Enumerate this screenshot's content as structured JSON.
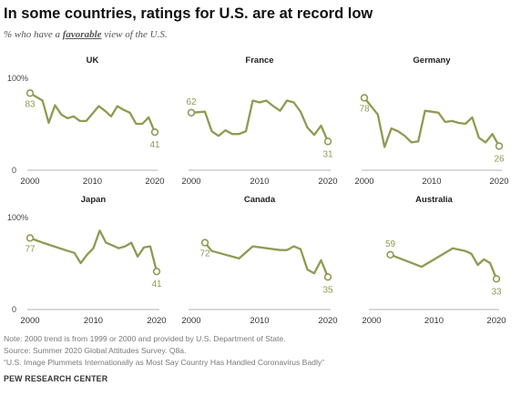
{
  "title": "In some countries, ratings for U.S. are at record low",
  "subtitle_pre": "% who have a ",
  "subtitle_em": "favorable",
  "subtitle_post": " view of the U.S.",
  "colors": {
    "line": "#8f9a52",
    "axis": "#9a9a9a",
    "text": "#333333"
  },
  "chart_data": [
    {
      "type": "line",
      "title": "UK",
      "xlim": [
        2000,
        2020
      ],
      "ylim": [
        0,
        100
      ],
      "y_tick_labels": [
        "100%",
        "0"
      ],
      "x_tick_labels": [
        "2000",
        "2010",
        "2020"
      ],
      "start_label": "83",
      "end_label": "41",
      "x": [
        2000,
        2002,
        2003,
        2004,
        2005,
        2006,
        2007,
        2008,
        2009,
        2011,
        2012,
        2013,
        2014,
        2015,
        2016,
        2017,
        2018,
        2019,
        2020
      ],
      "values": [
        83,
        75,
        51,
        70,
        60,
        56,
        58,
        53,
        53,
        69,
        64,
        58,
        69,
        65,
        62,
        50,
        50,
        57,
        41
      ]
    },
    {
      "type": "line",
      "title": "France",
      "xlim": [
        2000,
        2020
      ],
      "ylim": [
        0,
        100
      ],
      "x_tick_labels": [
        "2000",
        "2010",
        "2020"
      ],
      "start_label": "62",
      "end_label": "31",
      "x": [
        2000,
        2002,
        2003,
        2004,
        2005,
        2006,
        2007,
        2008,
        2009,
        2010,
        2011,
        2012,
        2013,
        2014,
        2015,
        2016,
        2017,
        2018,
        2019,
        2020
      ],
      "values": [
        62,
        63,
        42,
        37,
        43,
        39,
        39,
        42,
        75,
        73,
        75,
        69,
        64,
        75,
        73,
        63,
        46,
        38,
        48,
        31
      ]
    },
    {
      "type": "line",
      "title": "Germany",
      "xlim": [
        2000,
        2020
      ],
      "ylim": [
        0,
        100
      ],
      "x_tick_labels": [
        "2000",
        "2010",
        "2020"
      ],
      "start_label": "78",
      "end_label": "26",
      "x": [
        2000,
        2002,
        2003,
        2004,
        2005,
        2006,
        2007,
        2008,
        2009,
        2010,
        2011,
        2012,
        2013,
        2014,
        2015,
        2016,
        2017,
        2018,
        2019,
        2020
      ],
      "values": [
        78,
        60,
        25,
        45,
        42,
        37,
        30,
        31,
        64,
        63,
        62,
        52,
        53,
        51,
        50,
        57,
        35,
        30,
        39,
        26
      ]
    },
    {
      "type": "line",
      "title": "Japan",
      "xlim": [
        2000,
        2020
      ],
      "ylim": [
        0,
        100
      ],
      "y_tick_labels": [
        "100%",
        "0"
      ],
      "x_tick_labels": [
        "2000",
        "2010",
        "2020"
      ],
      "start_label": "77",
      "end_label": "41",
      "x": [
        2000,
        2002,
        2006,
        2007,
        2008,
        2009,
        2010,
        2011,
        2012,
        2013,
        2014,
        2015,
        2016,
        2017,
        2018,
        2019,
        2020
      ],
      "values": [
        77,
        72,
        63,
        61,
        50,
        59,
        66,
        85,
        72,
        69,
        66,
        68,
        72,
        57,
        67,
        68,
        41
      ]
    },
    {
      "type": "line",
      "title": "Canada",
      "xlim": [
        2000,
        2020
      ],
      "ylim": [
        0,
        100
      ],
      "x_tick_labels": [
        "2000",
        "2010",
        "2020"
      ],
      "start_label": "72",
      "end_label": "35",
      "x": [
        2002,
        2003,
        2005,
        2007,
        2009,
        2013,
        2014,
        2015,
        2016,
        2017,
        2018,
        2019,
        2020
      ],
      "values": [
        72,
        63,
        59,
        55,
        68,
        64,
        64,
        68,
        65,
        43,
        39,
        53,
        35
      ]
    },
    {
      "type": "line",
      "title": "Australia",
      "xlim": [
        2000,
        2020
      ],
      "ylim": [
        0,
        100
      ],
      "x_tick_labels": [
        "2000",
        "2010",
        "2020"
      ],
      "start_label": "59",
      "end_label": "33",
      "x": [
        2003,
        2008,
        2013,
        2015,
        2016,
        2017,
        2018,
        2019,
        2020
      ],
      "values": [
        59,
        46,
        66,
        63,
        60,
        48,
        54,
        50,
        33
      ]
    }
  ],
  "footer": {
    "note": "Note: 2000 trend is from 1999 or 2000 and provided by U.S. Department of State.",
    "source": "Source: Summer 2020 Global Attitudes Survey. Q8a.",
    "report": "“U.S. Image Plummets Internationally as Most Say Country Has Handled Coronavirus Badly”",
    "org": "PEW RESEARCH CENTER"
  }
}
